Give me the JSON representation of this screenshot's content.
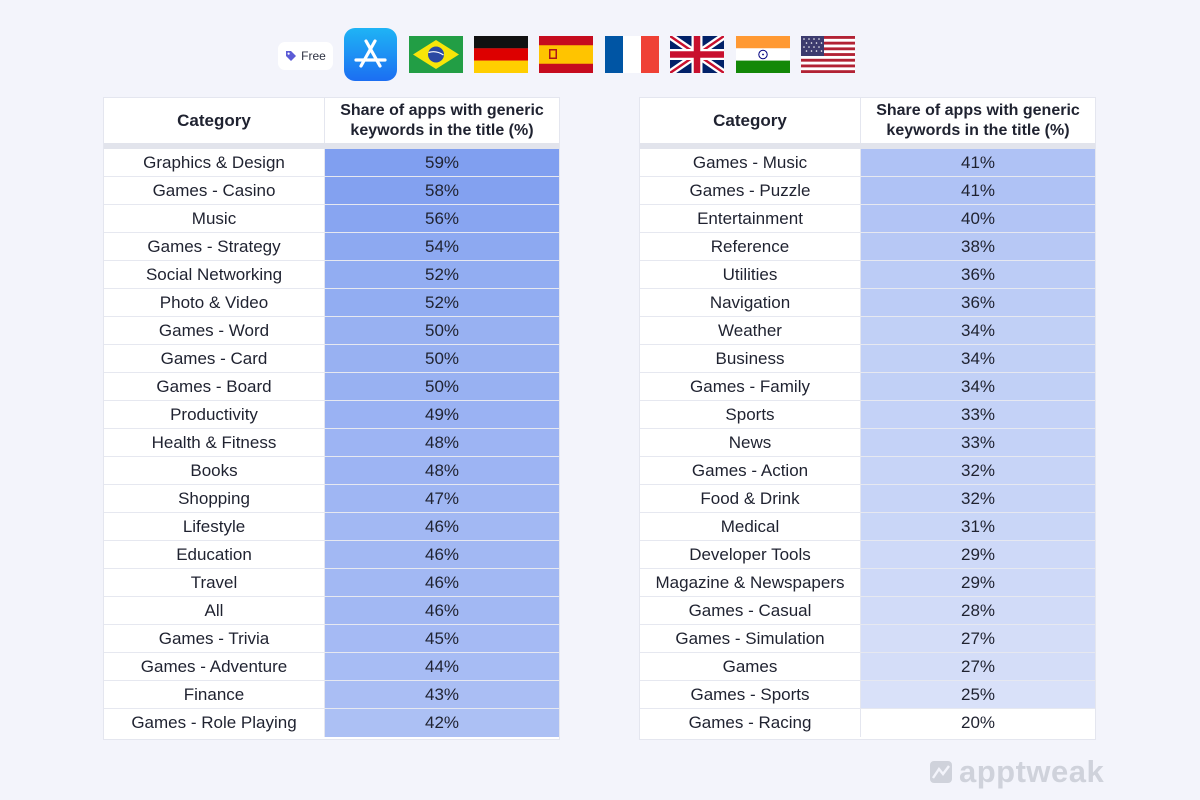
{
  "badge": {
    "label": "Free",
    "icon": "tag-icon"
  },
  "store_icon": "app-store-icon",
  "flags": [
    "brazil",
    "germany",
    "spain",
    "france",
    "united-kingdom",
    "india",
    "united-states"
  ],
  "tables": {
    "header_category": "Category",
    "header_value": "Share of apps with generic keywords in the title (%)"
  },
  "colors": {
    "heat_high": "#809ff0",
    "heat_low": "#e6ebfa",
    "background": "#f3f4fb"
  },
  "watermark": "apptweak",
  "chart_data": {
    "type": "table",
    "columns": [
      "Category",
      "Share of apps with generic keywords in the title (%)"
    ],
    "left_table": [
      {
        "category": "Graphics & Design",
        "value": "59%",
        "share": 59
      },
      {
        "category": "Games - Casino",
        "value": "58%",
        "share": 58
      },
      {
        "category": "Music",
        "value": "56%",
        "share": 56
      },
      {
        "category": "Games - Strategy",
        "value": "54%",
        "share": 54
      },
      {
        "category": "Social Networking",
        "value": "52%",
        "share": 52
      },
      {
        "category": "Photo & Video",
        "value": "52%",
        "share": 52
      },
      {
        "category": "Games - Word",
        "value": "50%",
        "share": 50
      },
      {
        "category": "Games - Card",
        "value": "50%",
        "share": 50
      },
      {
        "category": "Games - Board",
        "value": "50%",
        "share": 50
      },
      {
        "category": "Productivity",
        "value": "49%",
        "share": 49
      },
      {
        "category": "Health & Fitness",
        "value": "48%",
        "share": 48
      },
      {
        "category": "Books",
        "value": "48%",
        "share": 48
      },
      {
        "category": "Shopping",
        "value": "47%",
        "share": 47
      },
      {
        "category": "Lifestyle",
        "value": "46%",
        "share": 46
      },
      {
        "category": "Education",
        "value": "46%",
        "share": 46
      },
      {
        "category": "Travel",
        "value": "46%",
        "share": 46
      },
      {
        "category": "All",
        "value": "46%",
        "share": 46
      },
      {
        "category": "Games - Trivia",
        "value": "45%",
        "share": 45
      },
      {
        "category": "Games - Adventure",
        "value": "44%",
        "share": 44
      },
      {
        "category": "Finance",
        "value": "43%",
        "share": 43
      },
      {
        "category": "Games - Role Playing",
        "value": "42%",
        "share": 42
      }
    ],
    "right_table": [
      {
        "category": "Games - Music",
        "value": "41%",
        "share": 41
      },
      {
        "category": "Games - Puzzle",
        "value": "41%",
        "share": 41
      },
      {
        "category": "Entertainment",
        "value": "40%",
        "share": 40
      },
      {
        "category": "Reference",
        "value": "38%",
        "share": 38
      },
      {
        "category": "Utilities",
        "value": "36%",
        "share": 36
      },
      {
        "category": "Navigation",
        "value": "36%",
        "share": 36
      },
      {
        "category": "Weather",
        "value": "34%",
        "share": 34
      },
      {
        "category": "Business",
        "value": "34%",
        "share": 34
      },
      {
        "category": "Games - Family",
        "value": "34%",
        "share": 34
      },
      {
        "category": "Sports",
        "value": "33%",
        "share": 33
      },
      {
        "category": "News",
        "value": "33%",
        "share": 33
      },
      {
        "category": "Games - Action",
        "value": "32%",
        "share": 32
      },
      {
        "category": "Food & Drink",
        "value": "32%",
        "share": 32
      },
      {
        "category": "Medical",
        "value": "31%",
        "share": 31
      },
      {
        "category": "Developer Tools",
        "value": "29%",
        "share": 29
      },
      {
        "category": "Magazine & Newspapers",
        "value": "29%",
        "share": 29
      },
      {
        "category": "Games - Casual",
        "value": "28%",
        "share": 28
      },
      {
        "category": "Games - Simulation",
        "value": "27%",
        "share": 27
      },
      {
        "category": "Games",
        "value": "27%",
        "share": 27
      },
      {
        "category": "Games - Sports",
        "value": "25%",
        "share": 25
      },
      {
        "category": "Games - Racing",
        "value": "20%",
        "share": 20
      }
    ]
  }
}
